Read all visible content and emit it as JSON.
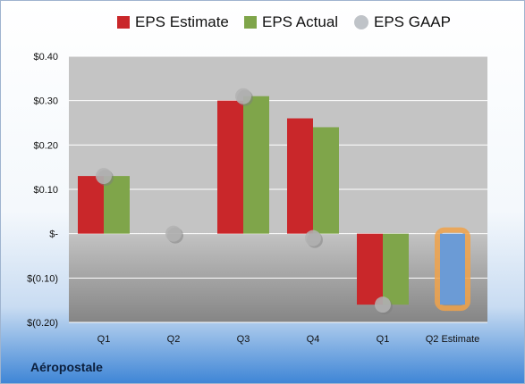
{
  "company": "Aéropostale",
  "chart_data": {
    "type": "bar",
    "categories": [
      "Q1",
      "Q2",
      "Q3",
      "Q4",
      "Q1",
      "Q2 Estimate"
    ],
    "series": [
      {
        "name": "EPS Estimate",
        "color": "#c9272a",
        "values": [
          0.13,
          null,
          0.3,
          0.26,
          -0.16,
          -0.16
        ]
      },
      {
        "name": "EPS Actual",
        "color": "#7fa54a",
        "values": [
          0.13,
          null,
          0.31,
          0.24,
          -0.16,
          null
        ]
      },
      {
        "name": "EPS GAAP",
        "color": "#b3b3b3",
        "values": [
          0.13,
          0.0,
          0.31,
          -0.01,
          -0.16,
          null
        ]
      }
    ],
    "highlight": {
      "category": "Q2 Estimate",
      "fill": "#6b9bd6",
      "outline": "#f0a24a"
    },
    "yticks": [
      {
        "value": 0.4,
        "label": "$0.40"
      },
      {
        "value": 0.3,
        "label": "$0.30"
      },
      {
        "value": 0.2,
        "label": "$0.20"
      },
      {
        "value": 0.1,
        "label": "$0.10"
      },
      {
        "value": 0.0,
        "label": "$-"
      },
      {
        "value": -0.1,
        "label": "$(0.10)"
      },
      {
        "value": -0.2,
        "label": "$(0.20)"
      }
    ],
    "ylim": [
      -0.2,
      0.4
    ],
    "grid": true,
    "legend_position": "top"
  }
}
